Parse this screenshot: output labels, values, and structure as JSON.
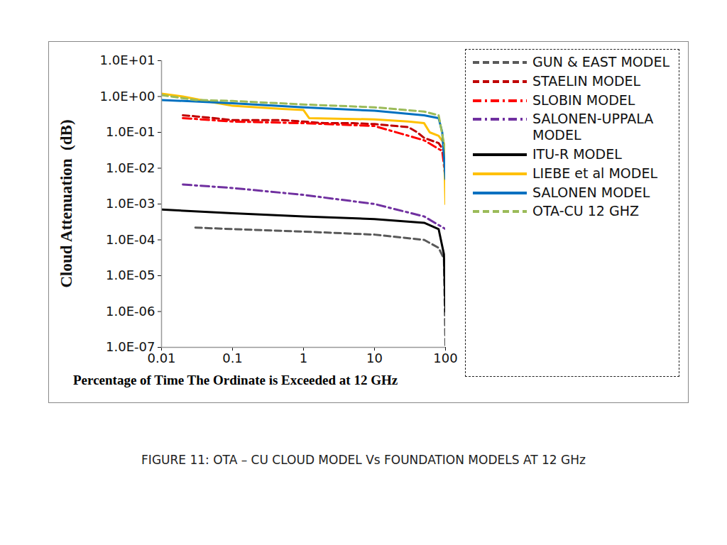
{
  "chart_data": {
    "type": "line",
    "title": "FIGURE 11: OTA – CU CLOUD MODEL  Vs  FOUNDATION MODELS AT 12 GHz",
    "x_label": "Percentage of Time The Ordinate is Exceeded at 12 GHz",
    "y_label": "Cloud Attenuation  (dB)",
    "log": true,
    "grid": false,
    "legend": "right",
    "xlim": [
      0.01,
      100
    ],
    "xticks": [
      0.01,
      0.1,
      1,
      10,
      100
    ],
    "ylim": [
      1e-07,
      10
    ],
    "yticks": [
      {
        "value": 1e-07,
        "label": "1.0E-07"
      },
      {
        "value": 1e-06,
        "label": "1.0E-06"
      },
      {
        "value": 1e-05,
        "label": "1.0E-05"
      },
      {
        "value": 0.0001,
        "label": "1.0E-04"
      },
      {
        "value": 0.001,
        "label": "1.0E-03"
      },
      {
        "value": 0.01,
        "label": "1.0E-02"
      },
      {
        "value": 0.1,
        "label": "1.0E-01"
      },
      {
        "value": 1,
        "label": "1.0E+00"
      },
      {
        "value": 10,
        "label": "1.0E+01"
      }
    ],
    "series": [
      {
        "name": "GUN & EAST MODEL",
        "color": "#595959",
        "line_style": "dashed",
        "x": [
          0.03,
          0.1,
          1,
          10,
          50,
          80,
          95,
          100
        ],
        "values": [
          0.00022,
          0.0002,
          0.00017,
          0.00014,
          0.0001,
          6e-05,
          3e-05,
          1e-07
        ]
      },
      {
        "name": "STAELIN MODEL",
        "color": "#c00000",
        "line_style": "dashed",
        "x": [
          0.02,
          0.03,
          0.1,
          0.5,
          1,
          2,
          5,
          10,
          20,
          30,
          40,
          50,
          80,
          95
        ],
        "values": [
          0.3,
          0.28,
          0.22,
          0.22,
          0.2,
          0.18,
          0.18,
          0.17,
          0.15,
          0.14,
          0.1,
          0.07,
          0.05,
          0.03
        ]
      },
      {
        "name": "SLOBIN MODEL",
        "color": "#ff0000",
        "line_style": "dashdot",
        "x": [
          0.02,
          0.1,
          1,
          10,
          50,
          90,
          100
        ],
        "values": [
          0.25,
          0.2,
          0.18,
          0.15,
          0.06,
          0.03,
          0.005
        ]
      },
      {
        "name": "SALONEN-UPPALA MODEL",
        "color": "#7030a0",
        "line_style": "dashdot",
        "x": [
          0.02,
          0.1,
          1,
          10,
          50,
          100
        ],
        "values": [
          0.0035,
          0.0028,
          0.0018,
          0.001,
          0.00045,
          0.0002
        ]
      },
      {
        "name": "ITU-R MODEL",
        "color": "#000000",
        "line_style": "solid",
        "x": [
          0.01,
          0.1,
          1,
          10,
          50,
          80,
          95,
          100
        ],
        "values": [
          0.0007,
          0.00055,
          0.00045,
          0.00038,
          0.0003,
          0.0002,
          4e-05,
          1e-06
        ]
      },
      {
        "name": "LIEBE et al MODEL",
        "color": "#ffc000",
        "line_style": "solid",
        "x": [
          0.01,
          0.02,
          0.05,
          0.1,
          0.5,
          1,
          1.2,
          10,
          30,
          50,
          60,
          80,
          95,
          100
        ],
        "values": [
          1.2,
          1.0,
          0.7,
          0.55,
          0.45,
          0.42,
          0.25,
          0.23,
          0.2,
          0.18,
          0.1,
          0.08,
          0.05,
          0.001
        ]
      },
      {
        "name": "SALONEN MODEL",
        "color": "#0070c0",
        "line_style": "solid",
        "x": [
          0.01,
          0.1,
          1,
          10,
          50,
          80,
          90,
          100
        ],
        "values": [
          0.8,
          0.65,
          0.5,
          0.4,
          0.3,
          0.25,
          0.1,
          0.005
        ]
      },
      {
        "name": "OTA-CU 12 GHZ",
        "color": "#9bbb59",
        "line_style": "dashed",
        "x": [
          0.01,
          0.03,
          0.1,
          1,
          10,
          50,
          80,
          95,
          100
        ],
        "values": [
          1.1,
          0.8,
          0.75,
          0.6,
          0.5,
          0.38,
          0.3,
          0.05,
          0.03
        ]
      }
    ]
  }
}
